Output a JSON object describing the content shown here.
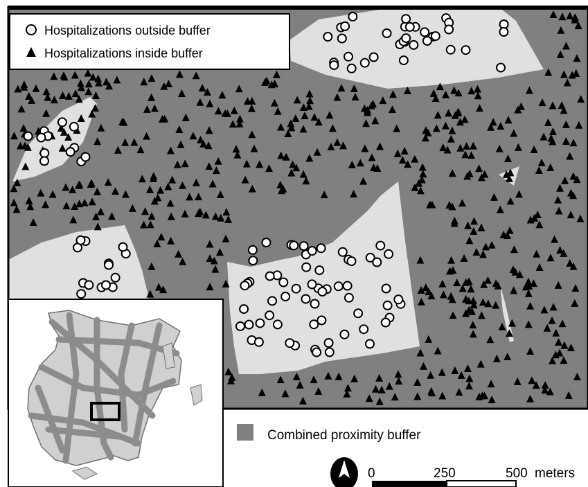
{
  "legend": {
    "outside_label": "Hospitalizations outside buffer",
    "inside_label": "Hospitalizations inside buffer",
    "buffer_label": "Combined proximity buffer"
  },
  "scale_bar": {
    "ticks": [
      "0",
      "250",
      "500"
    ],
    "unit": "meters"
  },
  "symbols": {
    "outside": "hollow-circle",
    "inside": "filled-triangle"
  },
  "colors": {
    "buffer": "#808080",
    "outside_buffer_area": "#e0e0e0",
    "inset_land": "#d0d0d0",
    "inset_roads": "#8c8c8c",
    "frame": "#000000"
  },
  "north_arrow": "north-arrow-icon"
}
